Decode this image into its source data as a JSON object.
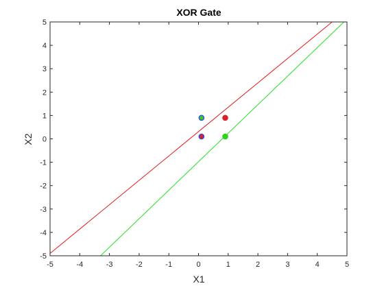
{
  "chart_data": {
    "type": "scatter",
    "title": "XOR Gate",
    "xlabel": "X1",
    "ylabel": "X2",
    "xlim": [
      -5,
      5
    ],
    "ylim": [
      -5,
      5
    ],
    "xticks": [
      "-5",
      "-4",
      "-3",
      "-2",
      "-1",
      "0",
      "1",
      "2",
      "3",
      "4",
      "5"
    ],
    "yticks": [
      "-5",
      "-4",
      "-3",
      "-2",
      "-1",
      "0",
      "1",
      "2",
      "3",
      "4",
      "5"
    ],
    "grid": false,
    "points": [
      {
        "x": 0.1,
        "y": 0.1,
        "fill": "#dd1f26",
        "edge": "#3c4bd6"
      },
      {
        "x": 0.1,
        "y": 0.9,
        "fill": "#2fd11c",
        "edge": "#3c4bd6"
      },
      {
        "x": 0.9,
        "y": 0.9,
        "fill": "#dd1f26",
        "edge": "#dd1f26"
      },
      {
        "x": 0.9,
        "y": 0.1,
        "fill": "#2fd11c",
        "edge": "#2fd11c"
      }
    ],
    "lines": [
      {
        "color": "#e31a1c",
        "x1": -5.0,
        "y1": -4.9,
        "x2": 4.5,
        "y2": 5.0
      },
      {
        "color": "#22e022",
        "x1": -3.3,
        "y1": -5.0,
        "x2": 4.9,
        "y2": 5.0
      }
    ]
  }
}
